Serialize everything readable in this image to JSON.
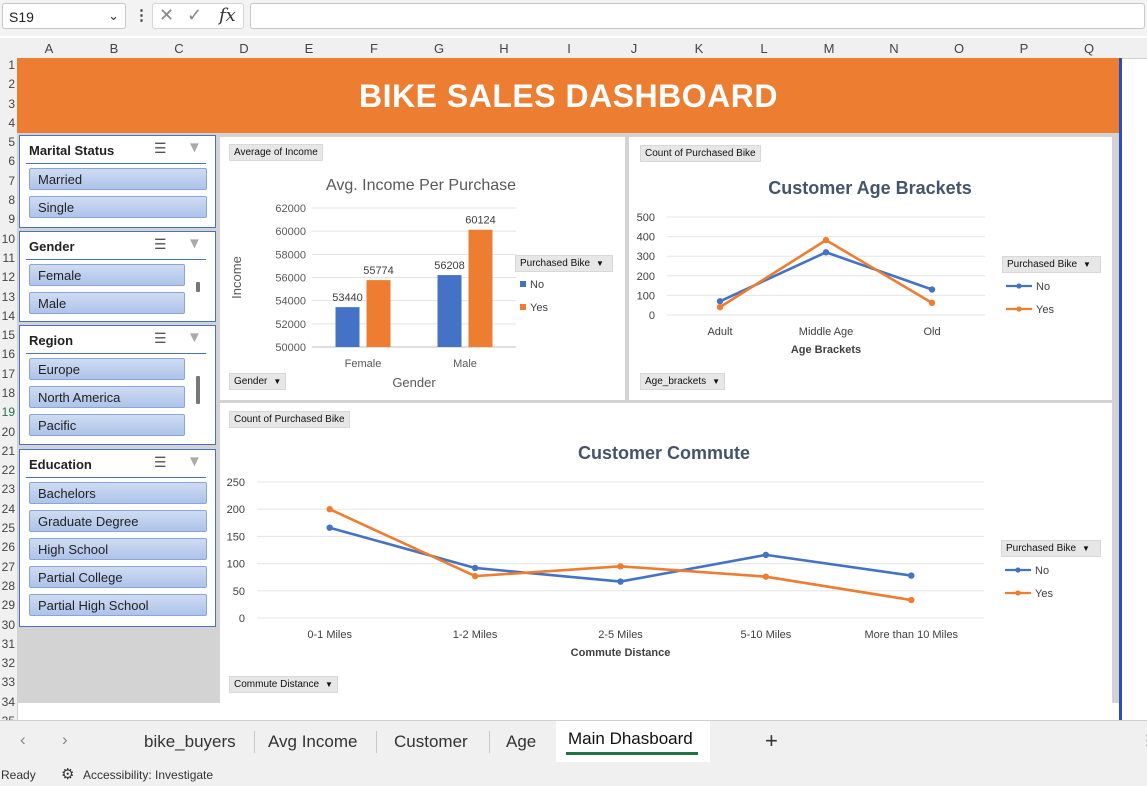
{
  "formula_bar": {
    "cell_ref": "S19",
    "formula_value": ""
  },
  "columns": [
    "A",
    "B",
    "C",
    "D",
    "E",
    "F",
    "G",
    "H",
    "I",
    "J",
    "K",
    "L",
    "M",
    "N",
    "O",
    "P",
    "Q"
  ],
  "rows": [
    "1",
    "2",
    "3",
    "4",
    "5",
    "6",
    "7",
    "8",
    "9",
    "10",
    "11",
    "12",
    "13",
    "14",
    "15",
    "16",
    "17",
    "18",
    "19",
    "20",
    "21",
    "22",
    "23",
    "24",
    "25",
    "26",
    "27",
    "28",
    "29",
    "30",
    "31",
    "32",
    "33",
    "34",
    "35"
  ],
  "dashboard": {
    "title": "BIKE SALES DASHBOARD",
    "title_color": "#ed7d31",
    "accent_blue": "#4472c4",
    "accent_orange": "#ed7d31"
  },
  "slicers": {
    "marital": {
      "title": "Marital Status",
      "items": [
        "Married",
        "Single"
      ]
    },
    "gender": {
      "title": "Gender",
      "items": [
        "Female",
        "Male"
      ]
    },
    "region": {
      "title": "Region",
      "items": [
        "Europe",
        "North America",
        "Pacific"
      ]
    },
    "education": {
      "title": "Education",
      "items": [
        "Bachelors",
        "Graduate Degree",
        "High School",
        "Partial College",
        "Partial High School"
      ]
    }
  },
  "charts": {
    "income": {
      "value_field": "Average of Income",
      "axis_field": "Gender",
      "legend_field": "Purchased Bike"
    },
    "age": {
      "value_field": "Count of Purchased Bike",
      "axis_field": "Age_brackets",
      "legend_field": "Purchased Bike"
    },
    "commute": {
      "value_field": "Count of Purchased Bike",
      "axis_field": "Commute Distance",
      "legend_field": "Purchased Bike"
    }
  },
  "chart_data": [
    {
      "type": "bar",
      "title": "Avg. Income Per Purchase",
      "xlabel": "Gender",
      "ylabel": "Income",
      "categories": [
        "Female",
        "Male"
      ],
      "series": [
        {
          "name": "No",
          "values": [
            53440,
            56208
          ],
          "color": "#4472c4"
        },
        {
          "name": "Yes",
          "values": [
            55774,
            60124
          ],
          "color": "#ed7d31"
        }
      ],
      "ylim": [
        50000,
        62000
      ],
      "yticks": [
        50000,
        52000,
        54000,
        56000,
        58000,
        60000,
        62000
      ],
      "legend_title": "Purchased Bike",
      "legend_position": "right",
      "grid": true
    },
    {
      "type": "line",
      "title": "Customer Age Brackets",
      "xlabel": "Age Brackets",
      "ylabel": "",
      "categories": [
        "Adult",
        "Middle Age",
        "Old"
      ],
      "series": [
        {
          "name": "No",
          "values": [
            70,
            320,
            130
          ],
          "color": "#4472c4"
        },
        {
          "name": "Yes",
          "values": [
            40,
            382,
            62
          ],
          "color": "#ed7d31"
        }
      ],
      "ylim": [
        0,
        500
      ],
      "yticks": [
        0,
        100,
        200,
        300,
        400,
        500
      ],
      "legend_title": "Purchased Bike",
      "legend_position": "right",
      "grid": true
    },
    {
      "type": "line",
      "title": "Customer Commute",
      "xlabel": "Commute Distance",
      "ylabel": "",
      "categories": [
        "0-1 Miles",
        "1-2 Miles",
        "2-5 Miles",
        "5-10 Miles",
        "More than 10 Miles"
      ],
      "series": [
        {
          "name": "No",
          "values": [
            166,
            92,
            67,
            116,
            78
          ],
          "color": "#4472c4"
        },
        {
          "name": "Yes",
          "values": [
            200,
            77,
            95,
            76,
            33
          ],
          "color": "#ed7d31"
        }
      ],
      "ylim": [
        0,
        250
      ],
      "yticks": [
        0,
        50,
        100,
        150,
        200,
        250
      ],
      "legend_title": "Purchased Bike",
      "legend_position": "right",
      "grid": true
    }
  ],
  "sheet_tabs": {
    "tabs": [
      "bike_buyers",
      "Avg Income",
      "Customer",
      "Age",
      "Main Dhasboard"
    ],
    "active": "Main Dhasboard",
    "add_label": "+"
  },
  "status": {
    "ready": "Ready",
    "accessibility": "Accessibility: Investigate"
  }
}
